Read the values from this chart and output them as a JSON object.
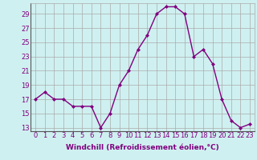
{
  "x": [
    0,
    1,
    2,
    3,
    4,
    5,
    6,
    7,
    8,
    9,
    10,
    11,
    12,
    13,
    14,
    15,
    16,
    17,
    18,
    19,
    20,
    21,
    22,
    23
  ],
  "y": [
    17,
    18,
    17,
    17,
    16,
    16,
    16,
    13,
    15,
    19,
    21,
    24,
    26,
    29,
    30,
    30,
    29,
    23,
    24,
    22,
    17,
    14,
    13,
    13.5
  ],
  "line_color": "#800080",
  "marker": "D",
  "marker_size": 2,
  "bg_color": "#cff0f0",
  "grid_color": "#aaaaaa",
  "xlabel": "Windchill (Refroidissement éolien,°C)",
  "yticks": [
    13,
    15,
    17,
    19,
    21,
    23,
    25,
    27,
    29
  ],
  "xticks": [
    0,
    1,
    2,
    3,
    4,
    5,
    6,
    7,
    8,
    9,
    10,
    11,
    12,
    13,
    14,
    15,
    16,
    17,
    18,
    19,
    20,
    21,
    22,
    23
  ],
  "ylim": [
    12.5,
    30.5
  ],
  "xlim": [
    -0.5,
    23.5
  ],
  "xlabel_fontsize": 6.5,
  "tick_fontsize": 6,
  "line_width": 1.0
}
